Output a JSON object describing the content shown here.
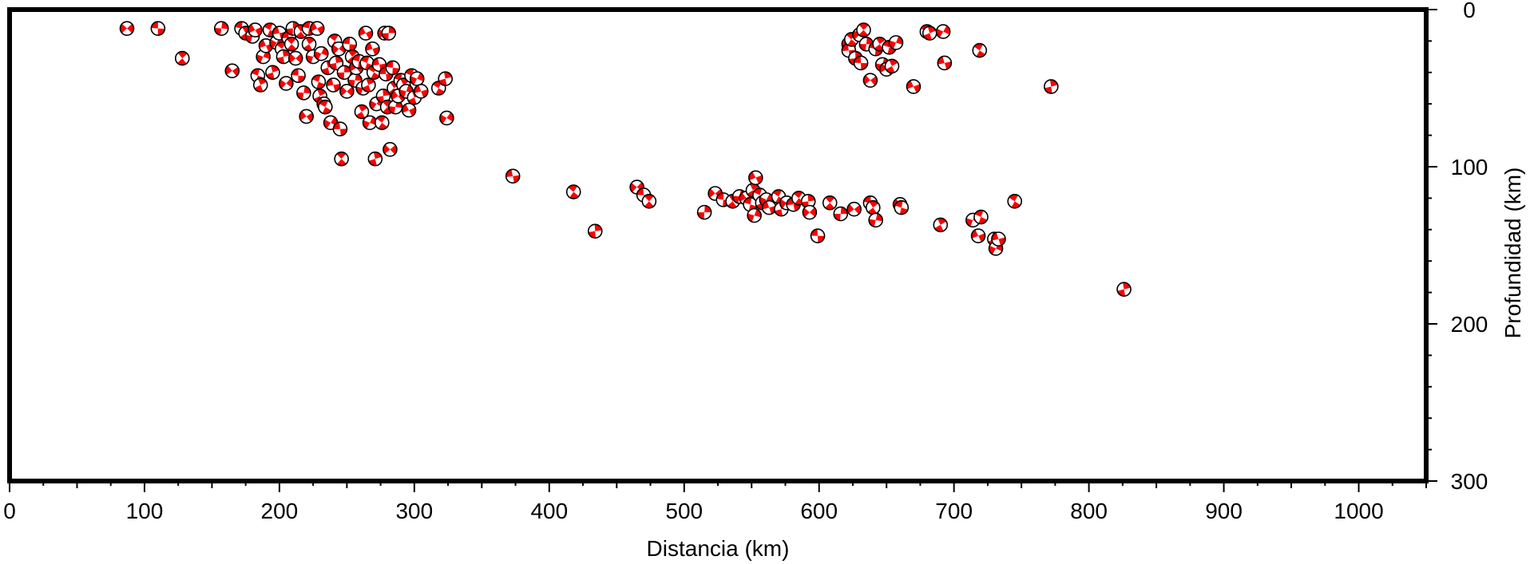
{
  "chart_data": {
    "type": "scatter",
    "marker": "focal-mechanism-beachball",
    "marker_colors": {
      "compressional": "#ff0000",
      "dilatational": "#ffffff",
      "outline": "#000000"
    },
    "xlabel": "Distancia (km)",
    "ylabel": "Profundidad (km)",
    "xlim": [
      0,
      1050
    ],
    "ylim": [
      300,
      0
    ],
    "y_inverted": true,
    "y_axis_side": "right",
    "grid": false,
    "x_ticks": [
      0,
      100,
      200,
      300,
      400,
      500,
      600,
      700,
      800,
      900,
      1000
    ],
    "x_tick_labels": [
      "0",
      "100",
      "200",
      "300",
      "400",
      "500",
      "600",
      "700",
      "800",
      "900",
      "1000"
    ],
    "y_ticks": [
      0,
      100,
      200,
      300
    ],
    "y_tick_labels": [
      "0",
      "100",
      "200",
      "300"
    ],
    "points": [
      [
        87,
        12
      ],
      [
        110,
        12
      ],
      [
        128,
        31
      ],
      [
        157,
        12
      ],
      [
        165,
        39
      ],
      [
        172,
        12
      ],
      [
        175,
        15
      ],
      [
        180,
        17
      ],
      [
        182,
        13
      ],
      [
        184,
        42
      ],
      [
        186,
        48
      ],
      [
        188,
        30
      ],
      [
        190,
        23
      ],
      [
        193,
        13
      ],
      [
        195,
        40
      ],
      [
        198,
        21
      ],
      [
        200,
        15
      ],
      [
        202,
        25
      ],
      [
        203,
        30
      ],
      [
        205,
        47
      ],
      [
        207,
        18
      ],
      [
        209,
        22
      ],
      [
        210,
        12
      ],
      [
        212,
        31
      ],
      [
        214,
        42
      ],
      [
        216,
        14
      ],
      [
        218,
        53
      ],
      [
        220,
        68
      ],
      [
        222,
        12
      ],
      [
        222,
        22
      ],
      [
        225,
        30
      ],
      [
        228,
        12
      ],
      [
        229,
        46
      ],
      [
        230,
        55
      ],
      [
        231,
        28
      ],
      [
        233,
        60
      ],
      [
        234,
        62
      ],
      [
        236,
        37
      ],
      [
        238,
        72
      ],
      [
        240,
        48
      ],
      [
        241,
        20
      ],
      [
        242,
        34
      ],
      [
        244,
        25
      ],
      [
        245,
        76
      ],
      [
        246,
        95
      ],
      [
        248,
        40
      ],
      [
        250,
        52
      ],
      [
        252,
        22
      ],
      [
        254,
        30
      ],
      [
        256,
        45
      ],
      [
        257,
        37
      ],
      [
        259,
        33
      ],
      [
        261,
        65
      ],
      [
        262,
        50
      ],
      [
        264,
        15
      ],
      [
        265,
        34
      ],
      [
        266,
        48
      ],
      [
        267,
        72
      ],
      [
        269,
        25
      ],
      [
        270,
        40
      ],
      [
        271,
        95
      ],
      [
        272,
        60
      ],
      [
        274,
        35
      ],
      [
        276,
        72
      ],
      [
        277,
        55
      ],
      [
        278,
        15
      ],
      [
        279,
        41
      ],
      [
        280,
        62
      ],
      [
        281,
        15
      ],
      [
        282,
        89
      ],
      [
        284,
        37
      ],
      [
        285,
        50
      ],
      [
        286,
        62
      ],
      [
        288,
        55
      ],
      [
        290,
        45
      ],
      [
        292,
        48
      ],
      [
        294,
        52
      ],
      [
        296,
        64
      ],
      [
        298,
        42
      ],
      [
        300,
        56
      ],
      [
        302,
        44
      ],
      [
        305,
        52
      ],
      [
        318,
        50
      ],
      [
        323,
        44
      ],
      [
        324,
        69
      ],
      [
        373,
        106
      ],
      [
        418,
        116
      ],
      [
        434,
        141
      ],
      [
        465,
        113
      ],
      [
        470,
        118
      ],
      [
        474,
        122
      ],
      [
        515,
        129
      ],
      [
        523,
        117
      ],
      [
        529,
        121
      ],
      [
        536,
        122
      ],
      [
        541,
        119
      ],
      [
        546,
        120
      ],
      [
        549,
        124
      ],
      [
        551,
        115
      ],
      [
        552,
        131
      ],
      [
        553,
        107
      ],
      [
        556,
        118
      ],
      [
        558,
        123
      ],
      [
        561,
        121
      ],
      [
        563,
        126
      ],
      [
        570,
        119
      ],
      [
        572,
        127
      ],
      [
        576,
        123
      ],
      [
        581,
        124
      ],
      [
        585,
        120
      ],
      [
        592,
        122
      ],
      [
        593,
        129
      ],
      [
        599,
        144
      ],
      [
        608,
        123
      ],
      [
        616,
        130
      ],
      [
        626,
        127
      ],
      [
        638,
        123
      ],
      [
        640,
        126
      ],
      [
        642,
        134
      ],
      [
        660,
        124
      ],
      [
        661,
        126
      ],
      [
        690,
        137
      ],
      [
        714,
        134
      ],
      [
        718,
        144
      ],
      [
        720,
        132
      ],
      [
        730,
        146
      ],
      [
        731,
        152
      ],
      [
        733,
        146
      ],
      [
        745,
        122
      ],
      [
        826,
        178
      ],
      [
        622,
        22
      ],
      [
        622,
        26
      ],
      [
        624,
        19
      ],
      [
        627,
        31
      ],
      [
        630,
        16
      ],
      [
        631,
        34
      ],
      [
        633,
        13
      ],
      [
        635,
        22
      ],
      [
        638,
        45
      ],
      [
        642,
        25
      ],
      [
        645,
        22
      ],
      [
        647,
        35
      ],
      [
        650,
        38
      ],
      [
        652,
        24
      ],
      [
        654,
        36
      ],
      [
        657,
        21
      ],
      [
        670,
        49
      ],
      [
        680,
        14
      ],
      [
        682,
        15
      ],
      [
        692,
        14
      ],
      [
        693,
        34
      ],
      [
        719,
        26
      ],
      [
        772,
        49
      ]
    ]
  }
}
